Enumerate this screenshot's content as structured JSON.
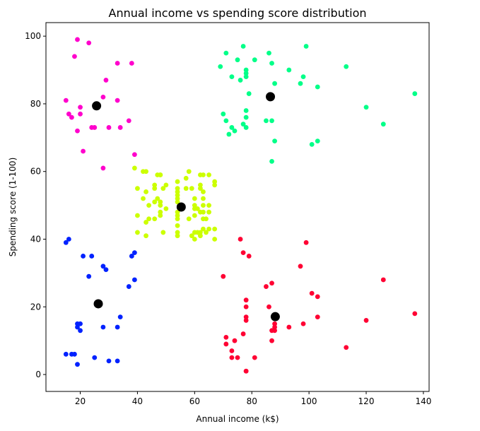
{
  "chart_data": {
    "type": "scatter",
    "title": "Annual income vs spending score distribution",
    "xlabel": "Annual income (k$)",
    "ylabel": "Spending score (1-100)",
    "xlim": [
      8,
      142
    ],
    "ylim": [
      -5,
      104
    ],
    "xticks": [
      20,
      40,
      60,
      80,
      100,
      120,
      140
    ],
    "yticks": [
      0,
      20,
      40,
      60,
      80,
      100
    ],
    "grid": false,
    "series": [
      {
        "color": "#ff00cc",
        "points": [
          [
            15,
            81
          ],
          [
            16,
            77
          ],
          [
            17,
            76
          ],
          [
            18,
            94
          ],
          [
            19,
            72
          ],
          [
            19,
            99
          ],
          [
            20,
            77
          ],
          [
            20,
            79
          ],
          [
            21,
            66
          ],
          [
            23,
            98
          ],
          [
            24,
            73
          ],
          [
            25,
            73
          ],
          [
            28,
            82
          ],
          [
            28,
            61
          ],
          [
            29,
            87
          ],
          [
            30,
            73
          ],
          [
            33,
            92
          ],
          [
            33,
            81
          ],
          [
            34,
            73
          ],
          [
            37,
            75
          ],
          [
            38,
            92
          ],
          [
            39,
            65
          ]
        ]
      },
      {
        "color": "#00ff88",
        "points": [
          [
            69,
            91
          ],
          [
            70,
            77
          ],
          [
            71,
            95
          ],
          [
            71,
            75
          ],
          [
            72,
            71
          ],
          [
            73,
            88
          ],
          [
            73,
            73
          ],
          [
            74,
            72
          ],
          [
            75,
            93
          ],
          [
            76,
            87
          ],
          [
            77,
            97
          ],
          [
            77,
            74
          ],
          [
            78,
            90
          ],
          [
            78,
            89
          ],
          [
            78,
            88
          ],
          [
            78,
            78
          ],
          [
            78,
            76
          ],
          [
            78,
            73
          ],
          [
            79,
            83
          ],
          [
            81,
            93
          ],
          [
            85,
            75
          ],
          [
            86,
            95
          ],
          [
            87,
            75
          ],
          [
            87,
            63
          ],
          [
            87,
            92
          ],
          [
            88,
            86
          ],
          [
            88,
            69
          ],
          [
            93,
            90
          ],
          [
            97,
            86
          ],
          [
            98,
            88
          ],
          [
            99,
            97
          ],
          [
            101,
            68
          ],
          [
            103,
            85
          ],
          [
            103,
            69
          ],
          [
            113,
            91
          ],
          [
            120,
            79
          ],
          [
            126,
            74
          ],
          [
            137,
            83
          ]
        ]
      },
      {
        "color": "#ccff00",
        "points": [
          [
            39,
            61
          ],
          [
            40,
            55
          ],
          [
            40,
            47
          ],
          [
            40,
            42
          ],
          [
            42,
            60
          ],
          [
            42,
            52
          ],
          [
            43,
            60
          ],
          [
            43,
            54
          ],
          [
            43,
            45
          ],
          [
            43,
            41
          ],
          [
            44,
            50
          ],
          [
            44,
            46
          ],
          [
            46,
            51
          ],
          [
            46,
            46
          ],
          [
            46,
            56
          ],
          [
            46,
            55
          ],
          [
            47,
            52
          ],
          [
            47,
            59
          ],
          [
            48,
            51
          ],
          [
            48,
            59
          ],
          [
            48,
            50
          ],
          [
            48,
            48
          ],
          [
            48,
            59
          ],
          [
            48,
            47
          ],
          [
            49,
            55
          ],
          [
            49,
            42
          ],
          [
            50,
            49
          ],
          [
            50,
            56
          ],
          [
            54,
            47
          ],
          [
            54,
            54
          ],
          [
            54,
            53
          ],
          [
            54,
            48
          ],
          [
            54,
            52
          ],
          [
            54,
            42
          ],
          [
            54,
            51
          ],
          [
            54,
            55
          ],
          [
            54,
            41
          ],
          [
            54,
            44
          ],
          [
            54,
            57
          ],
          [
            54,
            46
          ],
          [
            57,
            58
          ],
          [
            57,
            55
          ],
          [
            58,
            60
          ],
          [
            58,
            46
          ],
          [
            59,
            55
          ],
          [
            59,
            41
          ],
          [
            60,
            49
          ],
          [
            60,
            40
          ],
          [
            60,
            42
          ],
          [
            60,
            52
          ],
          [
            60,
            47
          ],
          [
            60,
            50
          ],
          [
            61,
            42
          ],
          [
            61,
            49
          ],
          [
            62,
            41
          ],
          [
            62,
            48
          ],
          [
            62,
            59
          ],
          [
            62,
            55
          ],
          [
            62,
            56
          ],
          [
            62,
            42
          ],
          [
            63,
            50
          ],
          [
            63,
            46
          ],
          [
            63,
            43
          ],
          [
            63,
            48
          ],
          [
            63,
            52
          ],
          [
            63,
            54
          ],
          [
            64,
            42
          ],
          [
            64,
            46
          ],
          [
            65,
            48
          ],
          [
            65,
            50
          ],
          [
            65,
            43
          ],
          [
            65,
            59
          ],
          [
            67,
            43
          ],
          [
            67,
            57
          ],
          [
            67,
            56
          ],
          [
            67,
            40
          ],
          [
            63,
            59
          ]
        ]
      },
      {
        "color": "#0022ff",
        "points": [
          [
            15,
            39
          ],
          [
            15,
            6
          ],
          [
            16,
            40
          ],
          [
            17,
            6
          ],
          [
            18,
            6
          ],
          [
            19,
            3
          ],
          [
            19,
            14
          ],
          [
            19,
            15
          ],
          [
            20,
            13
          ],
          [
            20,
            15
          ],
          [
            21,
            35
          ],
          [
            23,
            29
          ],
          [
            24,
            35
          ],
          [
            25,
            5
          ],
          [
            28,
            14
          ],
          [
            28,
            32
          ],
          [
            29,
            31
          ],
          [
            30,
            4
          ],
          [
            33,
            4
          ],
          [
            33,
            14
          ],
          [
            34,
            17
          ],
          [
            37,
            26
          ],
          [
            38,
            35
          ],
          [
            39,
            36
          ],
          [
            39,
            28
          ]
        ]
      },
      {
        "color": "#ff0033",
        "points": [
          [
            70,
            29
          ],
          [
            71,
            11
          ],
          [
            71,
            9
          ],
          [
            73,
            5
          ],
          [
            73,
            7
          ],
          [
            74,
            10
          ],
          [
            75,
            5
          ],
          [
            76,
            40
          ],
          [
            77,
            12
          ],
          [
            77,
            36
          ],
          [
            78,
            22
          ],
          [
            78,
            17
          ],
          [
            78,
            20
          ],
          [
            78,
            16
          ],
          [
            78,
            1
          ],
          [
            78,
            1
          ],
          [
            79,
            35
          ],
          [
            81,
            5
          ],
          [
            85,
            26
          ],
          [
            86,
            20
          ],
          [
            87,
            27
          ],
          [
            87,
            13
          ],
          [
            87,
            10
          ],
          [
            88,
            13
          ],
          [
            88,
            15
          ],
          [
            88,
            14
          ],
          [
            93,
            14
          ],
          [
            97,
            32
          ],
          [
            98,
            15
          ],
          [
            99,
            39
          ],
          [
            101,
            24
          ],
          [
            103,
            17
          ],
          [
            103,
            23
          ],
          [
            113,
            8
          ],
          [
            120,
            16
          ],
          [
            126,
            28
          ],
          [
            137,
            18
          ]
        ]
      }
    ],
    "centroids": {
      "color": "#000000",
      "points": [
        [
          25.7,
          79.4
        ],
        [
          86.5,
          82.1
        ],
        [
          55.3,
          49.5
        ],
        [
          26.3,
          20.9
        ],
        [
          88.2,
          17.1
        ]
      ]
    }
  }
}
